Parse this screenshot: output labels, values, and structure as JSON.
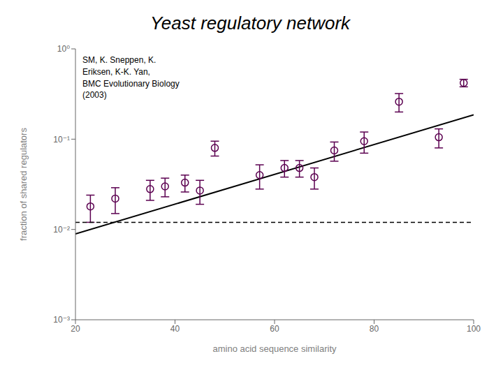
{
  "chart_data": {
    "type": "scatter",
    "title": "Yeast regulatory network",
    "xlabel": "amino acid sequence similarity",
    "ylabel": "fraction of shared regulators",
    "annotation": "SM, K. Sneppen, K.\nEriksen, K-K. Yan,\nBMC Evolutionary Biology\n(2003)",
    "log": "y",
    "grid": false,
    "xlim": [
      20,
      100
    ],
    "xticks": [
      20,
      40,
      60,
      80,
      100
    ],
    "ylim": [
      0.001,
      1
    ],
    "yticks": [
      {
        "value": 0.001,
        "label": "10⁻³"
      },
      {
        "value": 0.01,
        "label": "10⁻²"
      },
      {
        "value": 0.1,
        "label": "10⁻¹"
      },
      {
        "value": 1,
        "label": "10⁰"
      }
    ],
    "series": [
      {
        "type": "line",
        "color": "#000000",
        "line_style": "solid",
        "x": [
          20,
          100
        ],
        "values": [
          0.0089125,
          0.186209
        ]
      },
      {
        "type": "scatter",
        "color": "#5b0050",
        "marker": "circle_open",
        "x": [
          23,
          28,
          35,
          38,
          42,
          45,
          48,
          57,
          62,
          65,
          68,
          72,
          78,
          85,
          93,
          98
        ],
        "values": [
          0.018,
          0.022,
          0.028,
          0.03,
          0.033,
          0.027,
          0.08,
          0.04,
          0.048,
          0.048,
          0.038,
          0.075,
          0.095,
          0.26,
          0.105,
          0.42
        ],
        "y_err_low": [
          0.006,
          0.007,
          0.007,
          0.007,
          0.007,
          0.008,
          0.015,
          0.012,
          0.01,
          0.01,
          0.01,
          0.018,
          0.025,
          0.06,
          0.025,
          0.04
        ],
        "y_err_high": [
          0.006,
          0.007,
          0.007,
          0.007,
          0.007,
          0.008,
          0.015,
          0.012,
          0.01,
          0.01,
          0.01,
          0.018,
          0.025,
          0.06,
          0.025,
          0.04
        ]
      }
    ],
    "reference_lines": [
      {
        "y": 0.012,
        "color": "#000000",
        "line_style": "dashed"
      }
    ]
  }
}
